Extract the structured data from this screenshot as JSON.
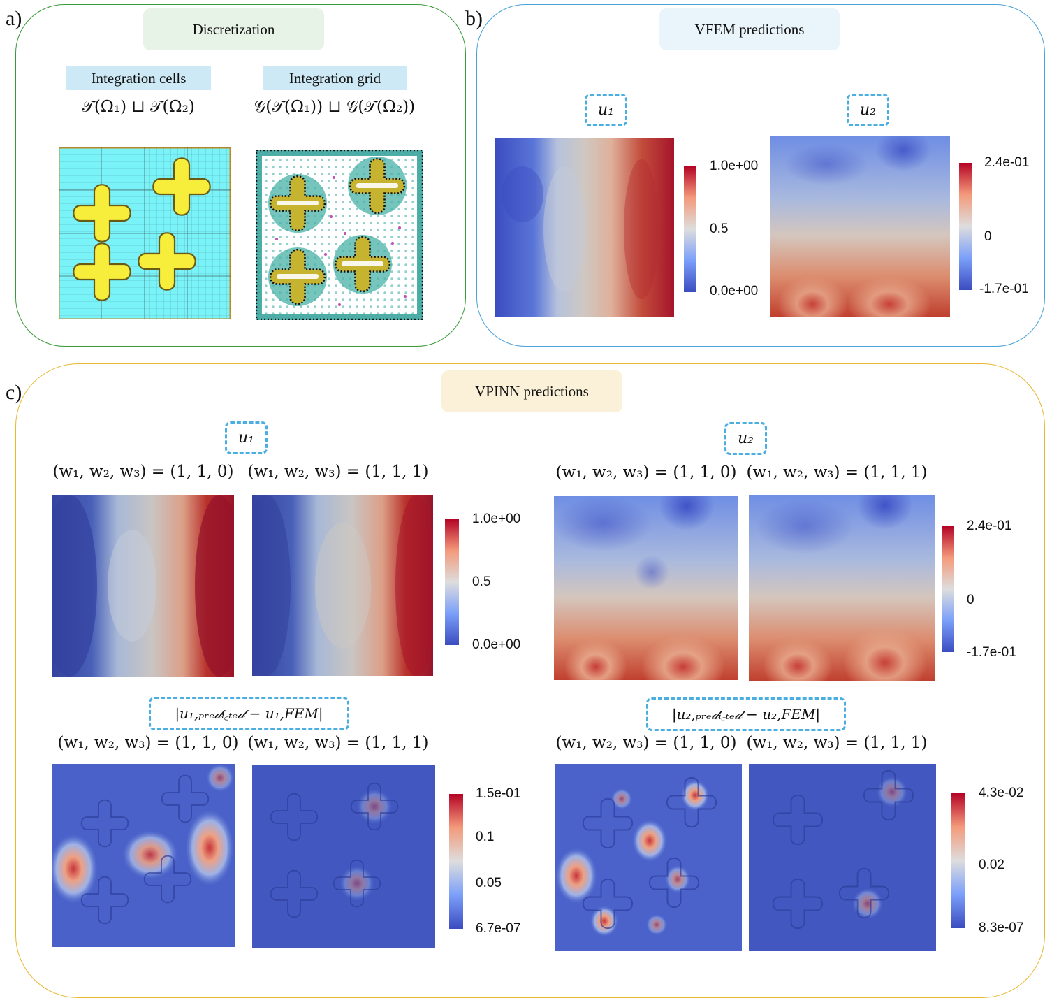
{
  "panel_a": {
    "letter": "a)",
    "title": "Discretization",
    "cells_label": "Integration cells",
    "cells_formula": "𝒯(Ω₁) ⊔ 𝒯(Ω₂)",
    "grid_label": "Integration grid",
    "grid_formula": "𝒢(𝒯(Ω₁)) ⊔ 𝒢(𝒯(Ω₂))"
  },
  "panel_b": {
    "letter": "b)",
    "title": "VFEM predictions",
    "u1_label": "u₁",
    "u2_label": "u₂",
    "u1_colorbar": {
      "max": "1.0e+00",
      "mid": "0.5",
      "min": "0.0e+00"
    },
    "u2_colorbar": {
      "max": "2.4e-01",
      "mid": "0",
      "min": "-1.7e-01"
    }
  },
  "panel_c": {
    "letter": "c)",
    "title": "VPINN predictions",
    "u1_label": "u₁",
    "u2_label": "u₂",
    "weights_110": "(w₁, w₂, w₃) = (1, 1, 0)",
    "weights_111": "(w₁, w₂, w₃) = (1, 1, 1)",
    "err1_label": "|u₁,ₚᵣₑ𝒹ᵢ꜀ₜₑ𝒹 − u₁,FEM|",
    "err2_label": "|u₂,ₚᵣₑ𝒹ᵢ꜀ₜₑ𝒹 − u₂,FEM|",
    "u1_colorbar": {
      "max": "1.0e+00",
      "mid": "0.5",
      "min": "0.0e+00"
    },
    "u2_colorbar": {
      "max": "2.4e-01",
      "mid": "0",
      "min": "-1.7e-01"
    },
    "err1_colorbar": {
      "max": "1.5e-01",
      "t2": "0.1",
      "t1": "0.05",
      "min": "6.7e-07"
    },
    "err2_colorbar": {
      "max": "4.3e-02",
      "mid": "0.02",
      "min": "8.3e-07"
    }
  },
  "colors": {
    "panel_a_border": "#3a9a3a",
    "panel_b_border": "#4aa3d8",
    "panel_c_border": "#e8b830",
    "panel_a_title_bg": "#e8f3e8",
    "panel_b_title_bg": "#eaf4fb",
    "panel_c_title_bg": "#fbf1d8",
    "cell_fill": "#7af3f8",
    "inclusion_fill": "#f7ee3c",
    "dash": "#4aaee0"
  }
}
